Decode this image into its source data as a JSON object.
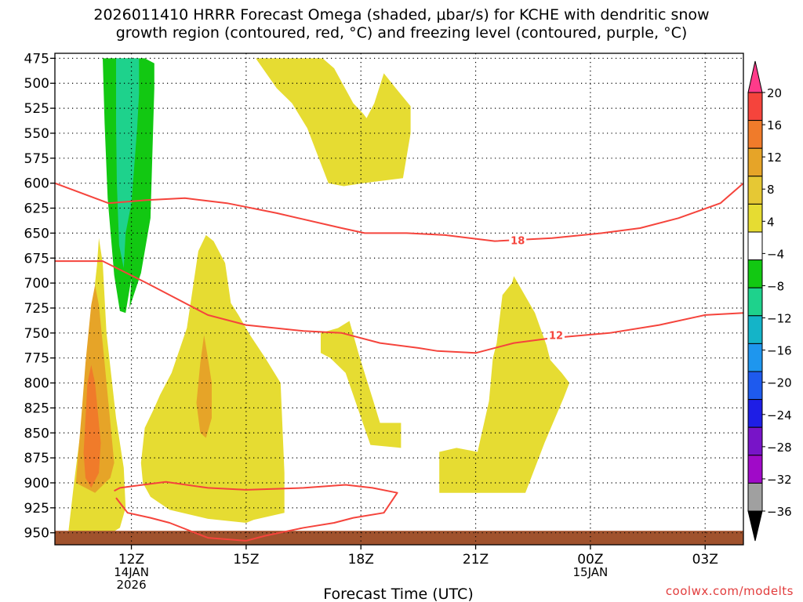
{
  "title": {
    "line1": "2026011410 HRRR Forecast Omega (shaded, μbar/s) for KCHE with dendritic snow",
    "line2": "growth region (contoured, red, °C) and freezing level (contoured, purple, °C)"
  },
  "credit": "coolwx.com/modelts",
  "chart_data": {
    "type": "contour",
    "xlabel": "Forecast Time (UTC)",
    "x_ticks": [
      {
        "t": 12,
        "lines": [
          "12Z",
          "14JAN",
          "2026"
        ]
      },
      {
        "t": 15,
        "lines": [
          "15Z"
        ]
      },
      {
        "t": 18,
        "lines": [
          "18Z"
        ]
      },
      {
        "t": 21,
        "lines": [
          "21Z"
        ]
      },
      {
        "t": 24,
        "lines": [
          "00Z",
          "15JAN"
        ]
      },
      {
        "t": 27,
        "lines": [
          "03Z"
        ]
      }
    ],
    "xlim": [
      10,
      28
    ],
    "ylim": [
      962,
      470
    ],
    "y_ticks": [
      475,
      500,
      525,
      550,
      575,
      600,
      625,
      650,
      675,
      700,
      725,
      750,
      775,
      800,
      825,
      850,
      875,
      900,
      925,
      950
    ],
    "colorbar": {
      "labels": [
        "20",
        "16",
        "12",
        "8",
        "4",
        "−4",
        "−8",
        "−12",
        "−16",
        "−20",
        "−24",
        "−28",
        "−32",
        "−36"
      ],
      "colors": [
        "#ff3b8a",
        "#f5443c",
        "#f07b2a",
        "#e6a428",
        "#e6c834",
        "#e6dc32",
        "#ffffff",
        "#12c812",
        "#1ed28c",
        "#14b4c8",
        "#1e96ee",
        "#1e5aee",
        "#1e1ee6",
        "#7814c8",
        "#a00ac8",
        "#a0a0a0",
        "#000000"
      ]
    },
    "colors": {
      "yellow": "#e6dc32",
      "gold": "#e6a428",
      "orange": "#f07b2a",
      "green": "#12c812",
      "teal": "#1ed28c",
      "contour": "#f5443c",
      "ground": "#a0522d",
      "grid": "#000000"
    },
    "shaded_regions": [
      {
        "name": "upward-omega-band-1",
        "fill": "yellow",
        "points": [
          [
            10.35,
            950
          ],
          [
            10.5,
            900
          ],
          [
            10.7,
            840
          ],
          [
            10.85,
            780
          ],
          [
            11.0,
            735
          ],
          [
            11.05,
            700
          ],
          [
            11.1,
            682
          ],
          [
            11.15,
            655
          ],
          [
            11.25,
            680
          ],
          [
            11.35,
            750
          ],
          [
            11.6,
            835
          ],
          [
            11.8,
            885
          ],
          [
            11.85,
            925
          ],
          [
            11.7,
            945
          ],
          [
            11.2,
            957
          ],
          [
            10.6,
            958
          ]
        ]
      },
      {
        "name": "upward-omega-band-1-core",
        "fill": "gold",
        "points": [
          [
            10.55,
            900
          ],
          [
            10.7,
            830
          ],
          [
            10.8,
            780
          ],
          [
            10.95,
            722
          ],
          [
            11.05,
            702
          ],
          [
            11.15,
            722
          ],
          [
            11.3,
            780
          ],
          [
            11.55,
            880
          ],
          [
            11.45,
            895
          ],
          [
            11.05,
            910
          ],
          [
            10.8,
            905
          ]
        ]
      },
      {
        "name": "upward-omega-band-1-max",
        "fill": "orange",
        "points": [
          [
            10.75,
            870
          ],
          [
            10.85,
            800
          ],
          [
            10.95,
            782
          ],
          [
            11.05,
            800
          ],
          [
            11.2,
            860
          ],
          [
            11.15,
            890
          ],
          [
            10.95,
            905
          ],
          [
            10.8,
            895
          ]
        ]
      },
      {
        "name": "downward-omega-column",
        "fill": "green",
        "points": [
          [
            11.3,
            475
          ],
          [
            12.35,
            475
          ],
          [
            12.6,
            480
          ],
          [
            12.6,
            505
          ],
          [
            12.5,
            635
          ],
          [
            12.25,
            690
          ],
          [
            11.95,
            725
          ],
          [
            12.0,
            695
          ],
          [
            11.85,
            730
          ],
          [
            11.7,
            728
          ],
          [
            11.55,
            692
          ],
          [
            11.38,
            615
          ],
          [
            11.3,
            540
          ],
          [
            11.25,
            475
          ]
        ]
      },
      {
        "name": "downward-omega-column-core",
        "fill": "teal",
        "points": [
          [
            11.7,
            475
          ],
          [
            12.2,
            475
          ],
          [
            12.2,
            510
          ],
          [
            12.15,
            545
          ],
          [
            12.0,
            620
          ],
          [
            11.85,
            650
          ],
          [
            11.8,
            685
          ],
          [
            11.68,
            662
          ],
          [
            11.62,
            600
          ],
          [
            11.6,
            540
          ],
          [
            11.6,
            475
          ]
        ]
      },
      {
        "name": "upward-omega-upper",
        "fill": "yellow",
        "points": [
          [
            15.25,
            475
          ],
          [
            17.0,
            475
          ],
          [
            17.3,
            485
          ],
          [
            17.8,
            520
          ],
          [
            18.05,
            530
          ],
          [
            18.15,
            535
          ],
          [
            18.35,
            520
          ],
          [
            18.6,
            490
          ],
          [
            18.85,
            502
          ],
          [
            19.3,
            523
          ],
          [
            19.3,
            550
          ],
          [
            19.1,
            595
          ],
          [
            18.05,
            600
          ],
          [
            17.55,
            603
          ],
          [
            17.15,
            600
          ],
          [
            16.6,
            545
          ],
          [
            16.2,
            520
          ],
          [
            15.8,
            505
          ]
        ]
      },
      {
        "name": "upward-omega-band-2",
        "fill": "yellow",
        "points": [
          [
            12.3,
            900
          ],
          [
            12.25,
            880
          ],
          [
            12.35,
            845
          ],
          [
            12.6,
            825
          ],
          [
            12.75,
            812
          ],
          [
            13.05,
            790
          ],
          [
            13.45,
            745
          ],
          [
            13.75,
            668
          ],
          [
            13.95,
            652
          ],
          [
            14.15,
            658
          ],
          [
            14.45,
            680
          ],
          [
            14.6,
            720
          ],
          [
            14.8,
            732
          ],
          [
            15.1,
            752
          ],
          [
            15.5,
            775
          ],
          [
            15.9,
            800
          ],
          [
            16.0,
            890
          ],
          [
            16.0,
            930
          ],
          [
            15.2,
            937
          ],
          [
            15.0,
            940
          ],
          [
            14.0,
            936
          ],
          [
            13.0,
            927
          ],
          [
            12.5,
            914
          ]
        ]
      },
      {
        "name": "upward-omega-band-2-core",
        "fill": "gold",
        "points": [
          [
            13.7,
            820
          ],
          [
            13.8,
            780
          ],
          [
            13.9,
            752
          ],
          [
            14.0,
            775
          ],
          [
            14.1,
            800
          ],
          [
            14.1,
            835
          ],
          [
            13.95,
            855
          ],
          [
            13.8,
            850
          ]
        ]
      },
      {
        "name": "upward-omega-cell-18z",
        "fill": "yellow",
        "points": [
          [
            16.95,
            750
          ],
          [
            17.4,
            745
          ],
          [
            17.7,
            738
          ],
          [
            17.95,
            772
          ],
          [
            18.3,
            815
          ],
          [
            18.5,
            840
          ],
          [
            19.05,
            840
          ],
          [
            19.05,
            865
          ],
          [
            18.25,
            862
          ],
          [
            17.6,
            790
          ],
          [
            17.2,
            775
          ],
          [
            16.95,
            770
          ]
        ]
      },
      {
        "name": "upward-omega-cell-22z",
        "fill": "yellow",
        "points": [
          [
            20.05,
            869
          ],
          [
            20.5,
            865
          ],
          [
            21.05,
            869
          ],
          [
            21.35,
            818
          ],
          [
            21.45,
            775
          ],
          [
            21.55,
            760
          ],
          [
            21.7,
            712
          ],
          [
            21.95,
            700
          ],
          [
            22.0,
            693
          ],
          [
            22.55,
            730
          ],
          [
            22.85,
            762
          ],
          [
            22.95,
            777
          ],
          [
            23.25,
            790
          ],
          [
            23.45,
            800
          ],
          [
            23.3,
            815
          ],
          [
            22.8,
            860
          ],
          [
            22.3,
            910
          ],
          [
            21.2,
            910
          ],
          [
            20.05,
            910
          ]
        ]
      }
    ],
    "ground": {
      "top": 948
    },
    "contours": [
      {
        "label": "18",
        "points": [
          [
            10,
            600
          ],
          [
            11.4,
            620
          ],
          [
            12.4,
            617
          ],
          [
            13.4,
            615
          ],
          [
            14.5,
            620
          ],
          [
            15.8,
            630
          ],
          [
            17.5,
            645
          ],
          [
            18.1,
            650
          ],
          [
            19.2,
            650
          ],
          [
            20.2,
            652
          ],
          [
            21.5,
            658
          ],
          [
            23.0,
            655
          ],
          [
            24.3,
            650
          ],
          [
            25.3,
            645
          ],
          [
            26.3,
            635
          ],
          [
            27.4,
            620
          ],
          [
            28.0,
            600
          ]
        ],
        "label_at": [
          22.1,
          657
        ]
      },
      {
        "label": "12",
        "points": [
          [
            10,
            678
          ],
          [
            11.25,
            678
          ],
          [
            12.4,
            700
          ],
          [
            14.0,
            732
          ],
          [
            15.0,
            742
          ],
          [
            16.5,
            748
          ],
          [
            17.5,
            750
          ],
          [
            18.5,
            760
          ],
          [
            19.5,
            765
          ],
          [
            20.0,
            768
          ],
          [
            21.0,
            770
          ],
          [
            22.0,
            760
          ],
          [
            23.0,
            755
          ],
          [
            24.5,
            750
          ],
          [
            25.8,
            742
          ],
          [
            27.0,
            732
          ],
          [
            28.0,
            730
          ]
        ],
        "label_at": [
          23.1,
          752
        ]
      },
      {
        "label": "",
        "points": [
          [
            11.55,
            908
          ],
          [
            11.7,
            905
          ],
          [
            12.3,
            902
          ],
          [
            12.9,
            899
          ],
          [
            14.0,
            905
          ],
          [
            15.0,
            907
          ],
          [
            16.5,
            905
          ],
          [
            17.6,
            902
          ],
          [
            18.3,
            905
          ],
          [
            18.95,
            910
          ],
          [
            18.6,
            930
          ],
          [
            17.8,
            935
          ],
          [
            17.3,
            940
          ],
          [
            16.5,
            945
          ],
          [
            15.5,
            953
          ],
          [
            15.0,
            958
          ],
          [
            14.0,
            955
          ],
          [
            13.0,
            940
          ],
          [
            12.5,
            935
          ],
          [
            11.9,
            930
          ],
          [
            11.6,
            915
          ]
        ],
        "label_at": null
      }
    ]
  }
}
